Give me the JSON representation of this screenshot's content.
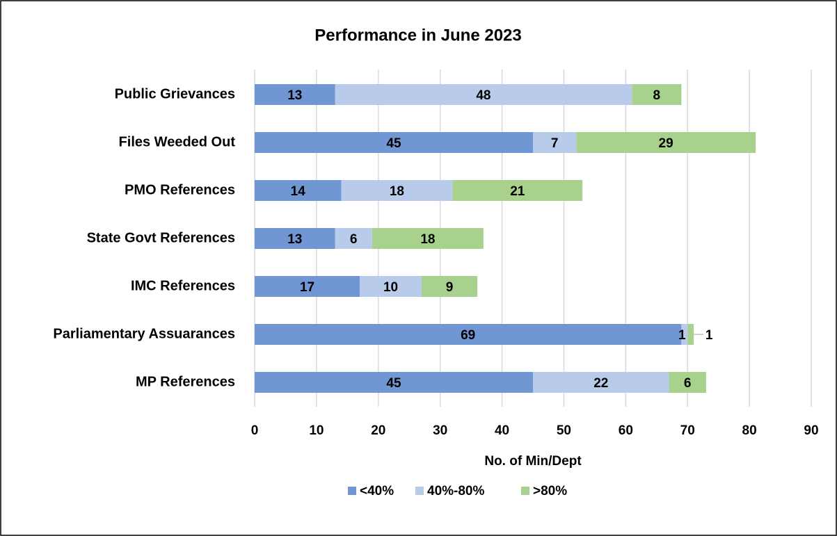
{
  "chart_data": {
    "type": "stacked_bar_horizontal",
    "title": "Performance in June 2023",
    "categories": [
      "Public Grievances",
      "Files Weeded Out",
      "PMO References",
      "State Govt References",
      "IMC References",
      "Parliamentary Assuarances",
      "MP References"
    ],
    "series": [
      {
        "name": "<40%",
        "color": "#7096d4",
        "values": [
          13,
          45,
          14,
          13,
          17,
          69,
          45
        ]
      },
      {
        "name": "40%-80%",
        "color": "#b9cbea",
        "values": [
          48,
          7,
          18,
          6,
          10,
          1,
          22
        ]
      },
      {
        "name": ">80%",
        "color": "#a9d18e",
        "values": [
          8,
          29,
          21,
          18,
          9,
          1,
          6
        ]
      }
    ],
    "x_label": "No. of Min/Dept",
    "xlim": [
      0,
      90
    ],
    "xticks": [
      0,
      10,
      20,
      30,
      40,
      50,
      60,
      70,
      80,
      90
    ],
    "grid": true,
    "legend": "bottom"
  }
}
